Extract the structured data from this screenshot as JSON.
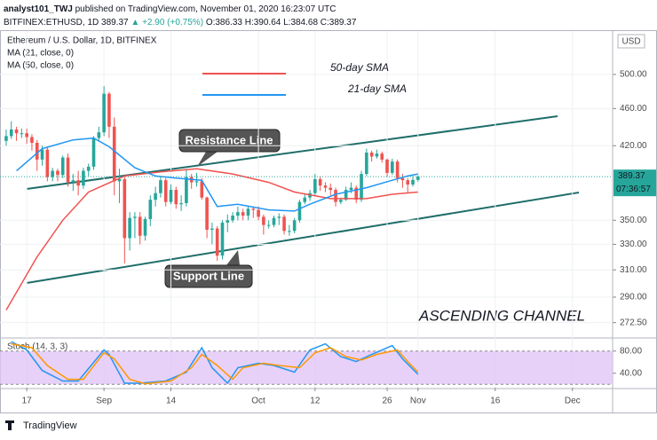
{
  "header": {
    "author": "analyst101_TWJ",
    "published": "published on TradingView.com, November 01, 2020 16:23:07 UTC",
    "symbol": "BITFINEX:ETHUSD, 1D",
    "price": "389.37",
    "change": "▲ +2.90 (+0.75%)",
    "ohlc": "O:386.33 H:390.64 L:384.68 C:389.37",
    "brand": "TradingView"
  },
  "chart_data": {
    "type": "candlestick",
    "title": "Ethereum / U.S. Dollar, 1D, BITFINEX",
    "indicators": [
      "MA (21, close, 0)",
      "MA (50, close, 0)"
    ],
    "currency": "USD",
    "countdown": "07:36:57",
    "annotations": [
      "Resistance Line",
      "Support Line",
      "ASCENDING CHANNEL"
    ],
    "up_color": "#26a69a",
    "down_color": "#ef5350",
    "log_scale": true,
    "xlim": [
      -5.2,
      113.8
    ],
    "xticks": [
      {
        "value": 0,
        "label": "17"
      },
      {
        "value": 15,
        "label": "Sep"
      },
      {
        "value": 28,
        "label": "14"
      },
      {
        "value": 45,
        "label": "Oct"
      },
      {
        "value": 56,
        "label": "12"
      },
      {
        "value": 70,
        "label": "26"
      },
      {
        "value": 76,
        "label": "Nov"
      },
      {
        "value": 91,
        "label": "16"
      },
      {
        "value": 106,
        "label": "Dec"
      }
    ],
    "ylim": [
      263,
      556
    ],
    "yticks": [
      {
        "value": 500,
        "label": "500.00"
      },
      {
        "value": 460,
        "label": "460.00"
      },
      {
        "value": 420,
        "label": "420.00"
      },
      {
        "value": 350,
        "label": "350.00"
      },
      {
        "value": 330,
        "label": "330.00"
      },
      {
        "value": 310,
        "label": "310.00"
      },
      {
        "value": 290,
        "label": "290.00"
      },
      {
        "value": 272.5,
        "label": "272.50"
      }
    ],
    "x": [
      -4,
      -3,
      -2,
      -1,
      0,
      1,
      2,
      3,
      4,
      5,
      6,
      7,
      8,
      9,
      10,
      11,
      12,
      13,
      14,
      15,
      16,
      17,
      18,
      19,
      20,
      21,
      22,
      23,
      24,
      25,
      26,
      27,
      28,
      29,
      30,
      31,
      32,
      33,
      34,
      35,
      36,
      37,
      38,
      39,
      40,
      41,
      42,
      43,
      44,
      45,
      46,
      47,
      48,
      49,
      50,
      51,
      52,
      53,
      54,
      55,
      56,
      57,
      58,
      59,
      60,
      61,
      62,
      63,
      64,
      65,
      66,
      67,
      68,
      69,
      70,
      71,
      72,
      73,
      74,
      75,
      76
    ],
    "ohlc": [
      [
        425,
        437,
        420,
        430
      ],
      [
        430,
        446,
        427,
        437
      ],
      [
        437,
        440,
        425,
        433
      ],
      [
        433,
        438,
        428,
        433
      ],
      [
        433,
        438,
        422,
        429
      ],
      [
        429,
        432,
        415,
        423
      ],
      [
        423,
        426,
        395,
        406
      ],
      [
        406,
        420,
        400,
        416
      ],
      [
        416,
        418,
        385,
        389
      ],
      [
        389,
        398,
        385,
        395
      ],
      [
        395,
        397,
        385,
        391
      ],
      [
        391,
        410,
        388,
        408
      ],
      [
        408,
        412,
        380,
        384
      ],
      [
        384,
        392,
        376,
        386
      ],
      [
        386,
        395,
        372,
        381
      ],
      [
        381,
        398,
        378,
        395
      ],
      [
        395,
        402,
        390,
        399
      ],
      [
        399,
        430,
        396,
        428
      ],
      [
        428,
        440,
        424,
        434
      ],
      [
        434,
        486,
        430,
        477
      ],
      [
        477,
        479,
        428,
        440
      ],
      [
        440,
        450,
        372,
        385
      ],
      [
        385,
        397,
        365,
        387
      ],
      [
        387,
        389,
        315,
        335
      ],
      [
        335,
        357,
        325,
        352
      ],
      [
        352,
        357,
        335,
        353
      ],
      [
        353,
        357,
        330,
        337
      ],
      [
        337,
        353,
        333,
        351
      ],
      [
        351,
        372,
        345,
        368
      ],
      [
        368,
        380,
        362,
        374
      ],
      [
        374,
        390,
        370,
        386
      ],
      [
        386,
        388,
        362,
        366
      ],
      [
        366,
        382,
        364,
        377
      ],
      [
        377,
        380,
        360,
        364
      ],
      [
        364,
        372,
        358,
        365
      ],
      [
        365,
        396,
        362,
        389
      ],
      [
        389,
        392,
        378,
        384
      ],
      [
        384,
        393,
        380,
        385
      ],
      [
        385,
        388,
        368,
        370
      ],
      [
        370,
        371,
        335,
        342
      ],
      [
        342,
        348,
        330,
        343
      ],
      [
        343,
        345,
        317,
        321
      ],
      [
        321,
        350,
        318,
        348
      ],
      [
        348,
        355,
        340,
        350
      ],
      [
        350,
        357,
        348,
        354
      ],
      [
        354,
        362,
        350,
        357
      ],
      [
        357,
        360,
        350,
        354
      ],
      [
        354,
        362,
        350,
        360
      ],
      [
        360,
        362,
        352,
        359
      ],
      [
        359,
        362,
        350,
        353
      ],
      [
        353,
        355,
        338,
        346
      ],
      [
        346,
        350,
        343,
        346
      ],
      [
        346,
        354,
        344,
        352
      ],
      [
        352,
        356,
        346,
        353
      ],
      [
        353,
        355,
        338,
        341
      ],
      [
        341,
        346,
        337,
        341
      ],
      [
        341,
        352,
        339,
        350
      ],
      [
        350,
        368,
        348,
        366
      ],
      [
        366,
        374,
        364,
        370
      ],
      [
        370,
        377,
        367,
        374
      ],
      [
        374,
        392,
        372,
        387
      ],
      [
        387,
        390,
        376,
        381
      ],
      [
        381,
        384,
        375,
        379
      ],
      [
        379,
        383,
        372,
        377
      ],
      [
        377,
        379,
        362,
        366
      ],
      [
        366,
        370,
        364,
        368
      ],
      [
        368,
        380,
        367,
        377
      ],
      [
        377,
        384,
        374,
        379
      ],
      [
        379,
        381,
        365,
        368
      ],
      [
        368,
        395,
        366,
        392
      ],
      [
        392,
        417,
        390,
        413
      ],
      [
        413,
        415,
        404,
        409
      ],
      [
        409,
        416,
        407,
        412
      ],
      [
        412,
        414,
        403,
        406
      ],
      [
        406,
        407,
        389,
        393
      ],
      [
        393,
        407,
        391,
        404
      ],
      [
        404,
        406,
        384,
        388
      ],
      [
        388,
        392,
        379,
        386
      ],
      [
        386,
        388,
        374,
        382
      ],
      [
        382,
        390,
        380,
        386.33
      ],
      [
        386.33,
        390.64,
        384.68,
        389.37
      ]
    ],
    "series": [
      {
        "name": "50-day SMA",
        "color": "#ef5350",
        "x": [
          -4,
          2,
          7,
          12,
          19,
          26,
          33,
          40,
          47,
          52,
          59,
          66,
          71,
          76
        ],
        "values": [
          281,
          320,
          350,
          375,
          390,
          394,
          397,
          392,
          384,
          375,
          369,
          369,
          373,
          375
        ]
      },
      {
        "name": "21-day SMA",
        "color": "#2196f3",
        "x": [
          -2,
          3,
          9,
          13,
          16,
          21,
          25,
          29,
          34,
          37,
          41,
          47,
          52,
          55,
          60,
          66,
          71,
          74,
          76
        ],
        "values": [
          395,
          417,
          426,
          428,
          419,
          398,
          390,
          388,
          386,
          362,
          364,
          359,
          358,
          364,
          373,
          379,
          386,
          390,
          392
        ]
      }
    ],
    "stoch": {
      "label": "Stoch (14, 3, 3)",
      "ylim": [
        14,
        102
      ],
      "yticks": [
        {
          "value": 80,
          "label": "80.00"
        },
        {
          "value": 40,
          "label": "40.00"
        }
      ],
      "band": [
        20,
        80
      ],
      "series": [
        {
          "color": "#2196f3",
          "x": [
            -3,
            0,
            3,
            7,
            10,
            15,
            16,
            19,
            22,
            27,
            31,
            34,
            36,
            39,
            41,
            45,
            48,
            52,
            55,
            58,
            61,
            64,
            67,
            71,
            73,
            76
          ],
          "values": [
            97,
            82,
            45,
            26,
            26,
            82,
            74,
            22,
            22,
            26,
            42,
            86,
            50,
            22,
            50,
            58,
            54,
            42,
            82,
            93,
            70,
            61,
            74,
            90,
            66,
            38
          ]
        },
        {
          "color": "#ff9800",
          "x": [
            -3,
            1,
            4,
            8,
            11,
            15,
            17,
            20,
            23,
            28,
            32,
            34,
            37,
            40,
            42,
            46,
            49,
            53,
            56,
            59,
            62,
            65,
            68,
            72,
            74,
            76
          ],
          "values": [
            93,
            86,
            54,
            29,
            29,
            77,
            66,
            29,
            21,
            26,
            50,
            74,
            54,
            29,
            50,
            58,
            54,
            50,
            77,
            86,
            70,
            64,
            74,
            82,
            61,
            42
          ]
        }
      ]
    }
  }
}
